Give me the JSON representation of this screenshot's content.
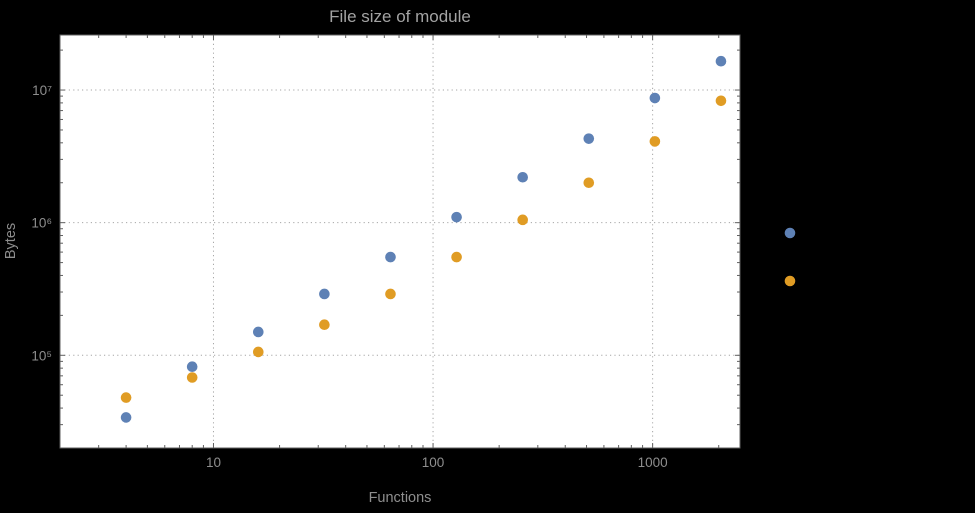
{
  "chart_data": {
    "type": "scatter",
    "title": "File size of module",
    "xlabel": "Functions",
    "ylabel": "Bytes",
    "xscale": "log",
    "yscale": "log",
    "xlim": [
      2,
      2500
    ],
    "ylim": [
      20000,
      26000000
    ],
    "grid": "dotted-major-only",
    "legend_position": "right-outside",
    "x": [
      4,
      8,
      16,
      32,
      64,
      128,
      256,
      512,
      1024,
      2048
    ],
    "series": [
      {
        "name": "series-1-blue",
        "color": "#5e81b5",
        "values": [
          34000,
          82000,
          150000,
          290000,
          550000,
          1100000,
          2200000,
          4300000,
          8700000,
          16500000
        ]
      },
      {
        "name": "series-2-orange",
        "color": "#e09c24",
        "values": [
          48000,
          68000,
          106000,
          170000,
          290000,
          550000,
          1050000,
          2000000,
          4100000,
          8300000
        ]
      }
    ],
    "xticks": {
      "major": [
        10,
        100,
        1000
      ],
      "labels": [
        "10",
        "100",
        "1000"
      ]
    },
    "yticks": {
      "major": [
        100000,
        1000000,
        10000000
      ],
      "labels": [
        "10⁵",
        "10⁶",
        "10⁷"
      ]
    },
    "legend_markers": [
      {
        "name": "legend-marker-series-1",
        "color": "#5e81b5"
      },
      {
        "name": "legend-marker-series-2",
        "color": "#e09c24"
      }
    ]
  },
  "colors": {
    "background": "#000000",
    "plot_background": "#ffffff",
    "frame": "#5f5f5f",
    "grid": "#a6a6a6",
    "labels": "#8e8e8e",
    "title": "#a3a3a3"
  }
}
